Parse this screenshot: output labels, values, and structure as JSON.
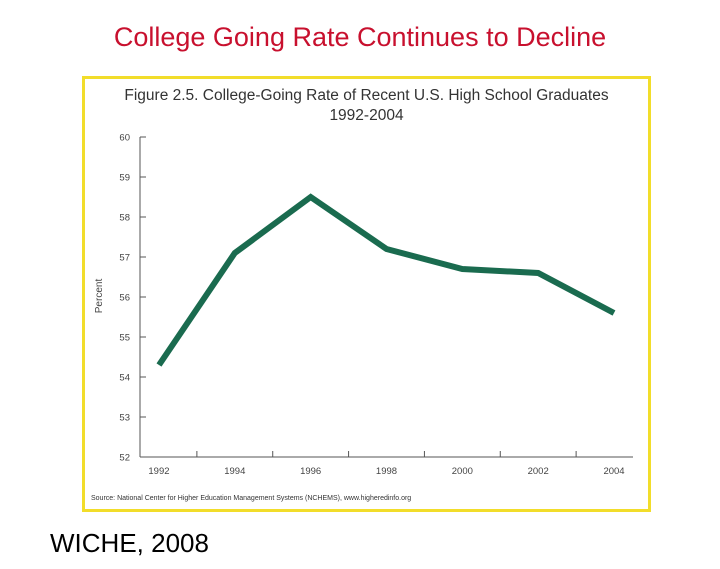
{
  "slide": {
    "title": "College Going Rate Continues to Decline",
    "footer": "WICHE, 2008"
  },
  "colors": {
    "title": "#c8102e",
    "frame": "#f2dd2a",
    "line": "#1a6b4f",
    "axis": "#555555"
  },
  "chart_data": {
    "type": "line",
    "title": "Figure 2.5.  College-Going Rate of Recent U.S. High School Graduates",
    "subtitle": "1992-2004",
    "xlabel": "",
    "ylabel": "Percent",
    "x": [
      1992,
      1994,
      1996,
      1998,
      2000,
      2002,
      2004
    ],
    "x_tick_labels": [
      "1992",
      "1994",
      "1996",
      "1998",
      "2000",
      "2002",
      "2004"
    ],
    "y_ticks": [
      52,
      53,
      54,
      55,
      56,
      57,
      58,
      59,
      60
    ],
    "ylim": [
      52,
      60
    ],
    "series": [
      {
        "name": "College-Going Rate",
        "values": [
          54.3,
          57.1,
          58.5,
          57.2,
          56.7,
          56.6,
          55.6
        ]
      }
    ],
    "grid": false,
    "source": "Source: National Center for Higher Education Management Systems (NCHEMS), www.higheredinfo.org"
  }
}
